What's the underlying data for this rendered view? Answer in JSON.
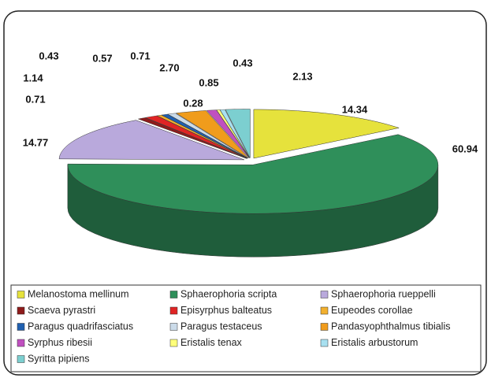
{
  "chart_data": {
    "type": "pie",
    "categories": [
      "Melanostoma mellinum",
      "Sphaerophoria scripta",
      "Sphaerophoria rueppelli",
      "Scaeva pyrastri",
      "Episyrphus balteatus",
      "Eupeodes corollae",
      "Paragus quadrifasciatus",
      "Paragus testaceus",
      "Pandasyophthalmus tibialis",
      "Syrphus ribesii",
      "Eristalis tenax",
      "Eristalis arbustorum",
      "Syritta pipiens"
    ],
    "values": [
      14.34,
      60.94,
      14.77,
      0.71,
      1.14,
      0.43,
      0.57,
      0.71,
      2.7,
      0.85,
      0.28,
      0.43,
      2.13
    ],
    "value_labels": [
      "14.34",
      "60.94",
      "14.77",
      "0.71",
      "1.14",
      "0.43",
      "0.57",
      "0.71",
      "2.70",
      "0.85",
      "0.28",
      "0.43",
      "2.13"
    ],
    "colors": [
      "#e6e23c",
      "#2f8f5a",
      "#b9a9dc",
      "#8e1b1b",
      "#e02424",
      "#f2b02e",
      "#2060b0",
      "#cbdbe9",
      "#f09c1c",
      "#c050c0",
      "#ffff7a",
      "#a8e0f0",
      "#7ccfd0"
    ]
  }
}
